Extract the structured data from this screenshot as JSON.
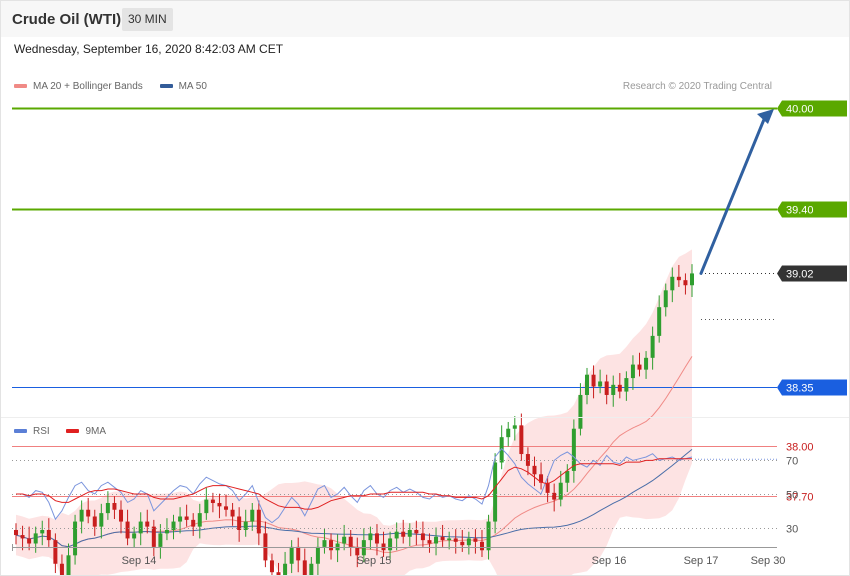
{
  "header": {
    "title": "Crude Oil (WTI)",
    "timeframe": "30 MIN"
  },
  "datetime": "Wednesday, September 16, 2020 8:42:03 AM CET",
  "legend_main": [
    {
      "label": "MA 20 + Bollinger Bands",
      "color": "#f08a86"
    },
    {
      "label": "MA 50",
      "color": "#335c99"
    }
  ],
  "credit": "Research © 2020 Trading Central",
  "legend_rsi": [
    {
      "label": "RSI",
      "color": "#5b7fd6"
    },
    {
      "label": "9MA",
      "color": "#e02020"
    }
  ],
  "colors": {
    "up_candle": "#2f9e2f",
    "down_candle": "#c81e1e",
    "target_line": "#5aa800",
    "pivot_line": "#1a5fe0",
    "support_line": "#f08080",
    "current_price": "#333333",
    "arrow": "#3060a0",
    "band_fill": "#fde0e0"
  },
  "chart_data": [
    {
      "type": "candlestick",
      "title": "",
      "x_ticks": [
        "Sep 14",
        "Sep 15",
        "Sep 16",
        "Sep 17",
        "Sep 30"
      ],
      "price_levels": [
        {
          "value": 40.0,
          "label": "40.00",
          "kind": "target"
        },
        {
          "value": 39.4,
          "label": "39.40",
          "kind": "target"
        },
        {
          "value": 39.02,
          "label": "39.02",
          "kind": "current"
        },
        {
          "value": 38.35,
          "label": "38.35",
          "kind": "pivot"
        },
        {
          "value": 38.0,
          "label": "38.00",
          "kind": "support"
        },
        {
          "value": 37.7,
          "label": "37.70",
          "kind": "support"
        }
      ],
      "indicators": [
        "MA 20 + Bollinger Bands",
        "MA 50"
      ],
      "close_series": [
        37.47,
        37.45,
        37.42,
        37.48,
        37.5,
        37.44,
        37.3,
        37.2,
        37.35,
        37.55,
        37.62,
        37.58,
        37.52,
        37.6,
        37.66,
        37.62,
        37.55,
        37.45,
        37.48,
        37.55,
        37.52,
        37.4,
        37.48,
        37.5,
        37.55,
        37.58,
        37.56,
        37.52,
        37.6,
        37.68,
        37.66,
        37.64,
        37.62,
        37.58,
        37.5,
        37.55,
        37.62,
        37.48,
        37.32,
        37.25,
        37.2,
        37.3,
        37.4,
        37.32,
        37.22,
        37.3,
        37.4,
        37.44,
        37.38,
        37.42,
        37.46,
        37.4,
        37.35,
        37.44,
        37.48,
        37.42,
        37.38,
        37.45,
        37.49,
        37.46,
        37.5,
        37.48,
        37.44,
        37.42,
        37.46,
        37.44,
        37.45,
        37.43,
        37.41,
        37.45,
        37.43,
        37.38,
        37.55,
        37.9,
        38.05,
        38.1,
        38.12,
        37.95,
        37.88,
        37.83,
        37.78,
        37.72,
        37.68,
        37.78,
        37.85,
        38.1,
        38.3,
        38.42,
        38.35,
        38.38,
        38.3,
        38.36,
        38.32,
        38.4,
        38.48,
        38.45,
        38.52,
        38.65,
        38.82,
        38.92,
        39.0,
        38.98,
        38.95,
        39.02
      ],
      "rsi": {
        "levels": [
          70,
          50,
          30
        ],
        "range": [
          20,
          80
        ],
        "rsi_series": [
          50,
          50,
          48,
          52,
          51,
          45,
          35,
          40,
          48,
          55,
          57,
          52,
          50,
          55,
          57,
          54,
          51,
          45,
          47,
          52,
          50,
          40,
          44,
          48,
          52,
          55,
          54,
          50,
          56,
          60,
          58,
          56,
          55,
          52,
          46,
          50,
          55,
          45,
          36,
          33,
          36,
          42,
          48,
          44,
          37,
          45,
          53,
          55,
          48,
          50,
          54,
          49,
          45,
          52,
          55,
          50,
          48,
          52,
          54,
          51,
          53,
          51,
          48,
          47,
          50,
          48,
          49,
          47,
          46,
          49,
          47,
          44,
          55,
          72,
          77,
          73,
          68,
          60,
          56,
          53,
          50,
          60,
          70,
          73,
          75,
          72,
          68,
          66,
          70,
          67,
          73,
          69,
          68,
          72,
          70,
          71,
          72,
          74,
          70,
          71,
          72,
          70,
          71,
          72
        ],
        "ma_series": [
          50,
          50,
          49,
          50,
          50,
          49,
          46,
          45,
          45,
          47,
          49,
          51,
          52,
          52,
          53,
          53,
          52,
          51,
          50,
          50,
          50,
          48,
          47,
          47,
          47,
          48,
          49,
          50,
          52,
          54,
          55,
          55,
          55,
          54,
          53,
          52,
          51,
          50,
          47,
          45,
          43,
          42,
          42,
          42,
          41,
          41,
          42,
          44,
          46,
          47,
          48,
          49,
          49,
          49,
          50,
          50,
          50,
          51,
          51,
          51,
          51,
          51,
          51,
          50,
          50,
          49,
          49,
          48,
          48,
          48,
          48,
          47,
          49,
          54,
          59,
          64,
          66,
          65,
          63,
          60,
          57,
          56,
          58,
          61,
          64,
          67,
          68,
          68,
          68,
          68,
          68,
          68,
          67,
          69,
          69,
          69,
          70,
          70,
          71,
          71,
          71,
          71,
          71,
          71
        ]
      }
    }
  ]
}
